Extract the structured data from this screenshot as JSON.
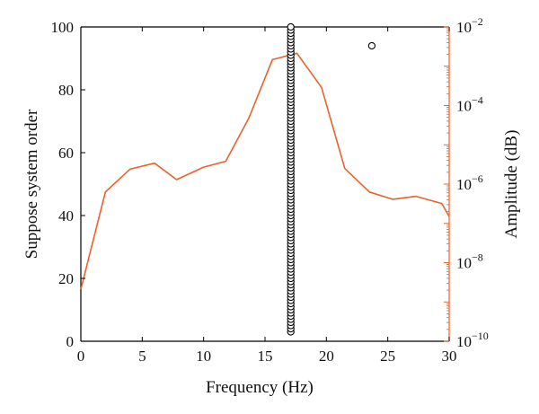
{
  "chart_data": {
    "type": "line",
    "xlabel": "Frequency (Hz)",
    "ylabel_left": "Suppose system order",
    "ylabel_right": "Amplitude (dB)",
    "xlim": [
      0,
      30
    ],
    "ylim_left": [
      0,
      100
    ],
    "ylim_right_log10": [
      -10,
      -2
    ],
    "x_ticks": [
      "0",
      "5",
      "10",
      "15",
      "20",
      "25",
      "30"
    ],
    "y_left_ticks": [
      "0",
      "20",
      "40",
      "60",
      "80",
      "100"
    ],
    "y_right_ticks": [
      {
        "base": "10",
        "exp": "−10",
        "value": -10
      },
      {
        "base": "10",
        "exp": "−8",
        "value": -8
      },
      {
        "base": "10",
        "exp": "−6",
        "value": -6
      },
      {
        "base": "10",
        "exp": "−4",
        "value": -4
      },
      {
        "base": "10",
        "exp": "−2",
        "value": -2
      }
    ],
    "grid": false,
    "colors": {
      "amplitude_line": "#e8622a",
      "markers": "#000000",
      "axes": "#000000"
    },
    "series": [
      {
        "kind": "scatter",
        "axis": "left",
        "marker": "open-circle",
        "points": [
          [
            17.1,
            3
          ],
          [
            17.1,
            4
          ],
          [
            17.1,
            5
          ],
          [
            17.1,
            6
          ],
          [
            17.1,
            7
          ],
          [
            17.1,
            8
          ],
          [
            17.1,
            9
          ],
          [
            17.1,
            10
          ],
          [
            17.1,
            11
          ],
          [
            17.1,
            12
          ],
          [
            17.1,
            13
          ],
          [
            17.1,
            14
          ],
          [
            17.1,
            15
          ],
          [
            17.1,
            16
          ],
          [
            17.1,
            17
          ],
          [
            17.1,
            18
          ],
          [
            17.1,
            19
          ],
          [
            17.1,
            20
          ],
          [
            17.1,
            21
          ],
          [
            17.1,
            22
          ],
          [
            17.1,
            23
          ],
          [
            17.1,
            24
          ],
          [
            17.1,
            25
          ],
          [
            17.1,
            26
          ],
          [
            17.1,
            27
          ],
          [
            17.1,
            28
          ],
          [
            17.1,
            29
          ],
          [
            17.1,
            30
          ],
          [
            17.1,
            31
          ],
          [
            17.1,
            32
          ],
          [
            17.1,
            33
          ],
          [
            17.1,
            34
          ],
          [
            17.1,
            35
          ],
          [
            17.1,
            36
          ],
          [
            17.1,
            37
          ],
          [
            17.1,
            38
          ],
          [
            17.1,
            39
          ],
          [
            17.1,
            40
          ],
          [
            17.1,
            41
          ],
          [
            17.1,
            42
          ],
          [
            17.1,
            43
          ],
          [
            17.1,
            44
          ],
          [
            17.1,
            45
          ],
          [
            17.1,
            46
          ],
          [
            17.1,
            47
          ],
          [
            17.1,
            48
          ],
          [
            17.1,
            49
          ],
          [
            17.1,
            50
          ],
          [
            17.1,
            51
          ],
          [
            17.1,
            52
          ],
          [
            17.1,
            53
          ],
          [
            17.1,
            54
          ],
          [
            17.1,
            55
          ],
          [
            17.1,
            56
          ],
          [
            17.1,
            57
          ],
          [
            17.1,
            58
          ],
          [
            17.1,
            59
          ],
          [
            17.1,
            60
          ],
          [
            17.1,
            61
          ],
          [
            17.1,
            62
          ],
          [
            17.1,
            63
          ],
          [
            17.1,
            64
          ],
          [
            17.1,
            65
          ],
          [
            17.1,
            66
          ],
          [
            17.1,
            67
          ],
          [
            17.1,
            68
          ],
          [
            17.1,
            69
          ],
          [
            17.1,
            70
          ],
          [
            17.1,
            71
          ],
          [
            17.1,
            72
          ],
          [
            17.1,
            73
          ],
          [
            17.1,
            74
          ],
          [
            17.1,
            75
          ],
          [
            17.1,
            76
          ],
          [
            17.1,
            77
          ],
          [
            17.1,
            78
          ],
          [
            17.1,
            79
          ],
          [
            17.1,
            80
          ],
          [
            17.1,
            81
          ],
          [
            17.1,
            82
          ],
          [
            17.1,
            83
          ],
          [
            17.1,
            84
          ],
          [
            17.1,
            85
          ],
          [
            17.1,
            86
          ],
          [
            17.1,
            87
          ],
          [
            17.1,
            88
          ],
          [
            17.1,
            89
          ],
          [
            17.1,
            90
          ],
          [
            17.1,
            91
          ],
          [
            17.1,
            92
          ],
          [
            17.1,
            93
          ],
          [
            17.1,
            94
          ],
          [
            17.1,
            95
          ],
          [
            17.1,
            96
          ],
          [
            17.1,
            97
          ],
          [
            17.1,
            98
          ],
          [
            17.1,
            99
          ],
          [
            17.1,
            100
          ],
          [
            23.7,
            94
          ]
        ]
      },
      {
        "kind": "line",
        "axis": "right",
        "scale": "log",
        "x": [
          0,
          2,
          4,
          6,
          7.8,
          10,
          11.8,
          13.7,
          15.6,
          17.6,
          19.6,
          21.5,
          23.5,
          25.4,
          27.3,
          29.4,
          30
        ],
        "amplitude": [
          2.1e-09,
          6.3e-07,
          2.4e-06,
          3.4e-06,
          1.3e-06,
          2.7e-06,
          3.8e-06,
          4.9e-05,
          0.00147,
          0.00214,
          0.00029,
          2.5e-06,
          6.3e-07,
          4.1e-07,
          4.9e-07,
          3.2e-07,
          1.5e-07
        ]
      }
    ]
  }
}
